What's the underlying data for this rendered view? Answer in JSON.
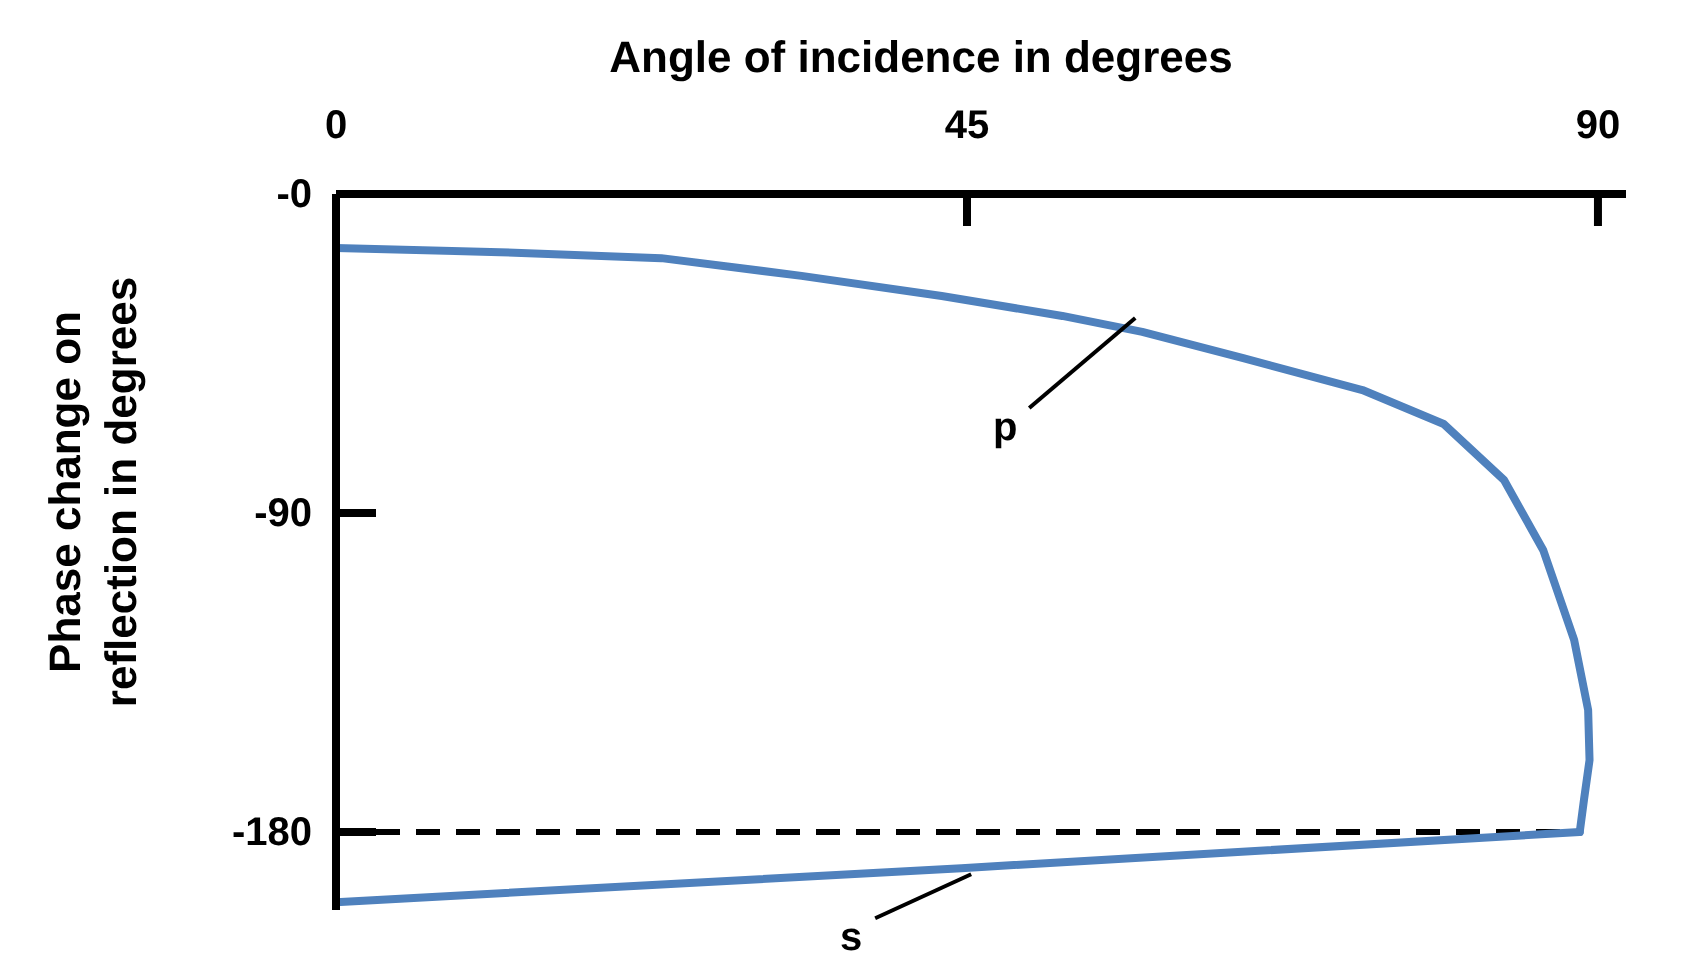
{
  "chart_data": {
    "type": "line",
    "xlabel": "Angle of incidence in degrees",
    "ylabel": "Phase change on reflection in degrees",
    "xlim": [
      0,
      92
    ],
    "xticks": [
      0,
      45,
      90
    ],
    "ylim": [
      -202,
      0
    ],
    "yticks": [
      {
        "value": 0,
        "label": "-0"
      },
      -90,
      -180
    ],
    "grid": false,
    "marker": "none",
    "line_style": "solid",
    "series": [
      {
        "color": "#4f81bd",
        "x": [
          0,
          11.7,
          23.2,
          33.2,
          43.2,
          51.8,
          57.5,
          64.7,
          73.2,
          79,
          83.3,
          86.1,
          88.3,
          89.3,
          89.4,
          89,
          88.7
        ],
        "values": [
          -15.2,
          -16.4,
          -18.1,
          -23.1,
          -28.8,
          -34.4,
          -38.9,
          -46.3,
          -55.3,
          -64.9,
          -80.7,
          -100.5,
          -125.8,
          -145.6,
          -159.7,
          -171,
          -180
        ]
      },
      {
        "color": "#4f81bd",
        "x": [
          0,
          44.6,
          88.7
        ],
        "values": [
          -199.8,
          -190.2,
          -180
        ]
      }
    ],
    "ref_lines": [
      {
        "axis": "y",
        "value": -180,
        "color": "#000000",
        "line_style": "dashed"
      }
    ],
    "annotations": [
      {
        "text": "p",
        "x": 57,
        "y": -35
      },
      {
        "text": "s",
        "x": 45.3,
        "y": -191.9
      }
    ]
  }
}
